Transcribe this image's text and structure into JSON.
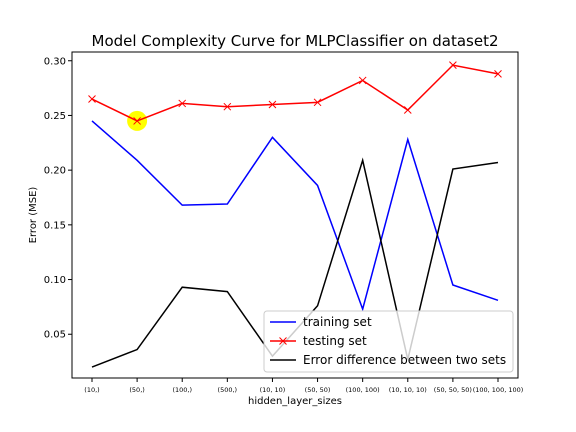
{
  "chart_data": {
    "type": "line",
    "title": "Model Complexity Curve for MLPClassifier on dataset2",
    "xlabel": "hidden_layer_sizes",
    "ylabel": "Error (MSE)",
    "categories": [
      "(10,)",
      "(50,)",
      "(100,)",
      "(500,)",
      "(10, 10)",
      "(50, 50)",
      "(100, 100)",
      "(10, 10, 10)",
      "(50, 50, 50)",
      "(100, 100, 100)"
    ],
    "ylim": [
      0.01,
      0.308
    ],
    "yticks": [
      0.05,
      0.1,
      0.15,
      0.2,
      0.25,
      0.3
    ],
    "ytick_labels": [
      "0.05",
      "0.10",
      "0.15",
      "0.20",
      "0.25",
      "0.30"
    ],
    "grid": false,
    "legend_position": "lower-right",
    "series": [
      {
        "name": "training set",
        "color": "#0000ff",
        "marker": "none",
        "values": [
          0.245,
          0.209,
          0.168,
          0.169,
          0.23,
          0.186,
          0.073,
          0.228,
          0.095,
          0.081
        ]
      },
      {
        "name": "testing set",
        "color": "#ff0000",
        "marker": "x",
        "values": [
          0.265,
          0.245,
          0.261,
          0.258,
          0.26,
          0.262,
          0.282,
          0.255,
          0.296,
          0.288
        ]
      },
      {
        "name": "Error difference between two sets",
        "color": "#000000",
        "marker": "none",
        "values": [
          0.02,
          0.036,
          0.093,
          0.089,
          0.03,
          0.076,
          0.209,
          0.027,
          0.201,
          0.207
        ]
      }
    ],
    "highlight": {
      "series": "testing set",
      "category": "(50,)",
      "value": 0.245,
      "color": "#ffff00"
    }
  }
}
